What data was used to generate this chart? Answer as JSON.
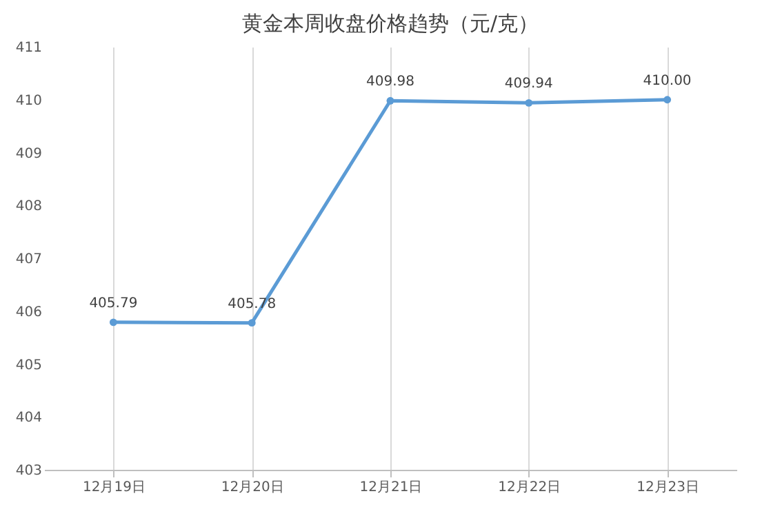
{
  "chart_data": {
    "type": "line",
    "title": "黄金本周收盘价格趋势（元/克）",
    "categories": [
      "12月19日",
      "12月20日",
      "12月21日",
      "12月22日",
      "12月23日"
    ],
    "series": [
      {
        "color": "#5b9bd5",
        "values": [
          405.79,
          405.78,
          409.98,
          409.94,
          410.0
        ]
      }
    ],
    "value_labels": [
      "405.79",
      "405.78",
      "409.98",
      "409.94",
      "410.00"
    ],
    "ylim": [
      403,
      411
    ],
    "yticks": [
      403,
      404,
      405,
      406,
      407,
      408,
      409,
      410,
      411
    ],
    "grid": "x",
    "marker": "circle",
    "line_style": "solid"
  }
}
